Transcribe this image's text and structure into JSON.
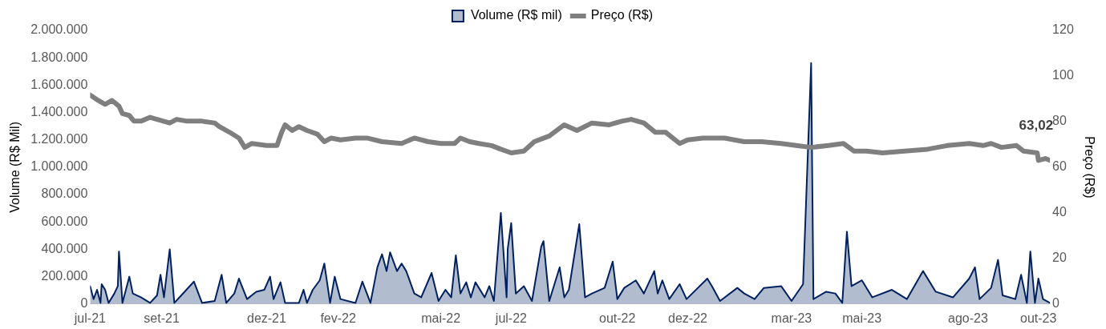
{
  "chart_data": {
    "type": "line",
    "ylabel": "Volume (R$ Mil)",
    "y2label": "Preço (R$)",
    "legend": "top",
    "grid": false,
    "marker": "none",
    "xlim": [
      "2021-07-01",
      "2023-10-11"
    ],
    "xticks": [
      {
        "value": "2021-07-01",
        "label": "jul-21"
      },
      {
        "value": "2021-09-01",
        "label": "set-21"
      },
      {
        "value": "2021-12-01",
        "label": "dez-21"
      },
      {
        "value": "2022-02-01",
        "label": "fev-22"
      },
      {
        "value": "2022-05-01",
        "label": "mai-22"
      },
      {
        "value": "2022-07-01",
        "label": "jul-22"
      },
      {
        "value": "2022-10-01",
        "label": "out-22"
      },
      {
        "value": "2022-12-01",
        "label": "dez-22"
      },
      {
        "value": "2023-03-01",
        "label": "mar-23"
      },
      {
        "value": "2023-05-01",
        "label": "mai-23"
      },
      {
        "value": "2023-08-01",
        "label": "ago-23"
      },
      {
        "value": "2023-10-01",
        "label": "out-23"
      }
    ],
    "ylim": [
      0,
      2000000
    ],
    "yticks": [
      {
        "value": 0,
        "label": "0"
      },
      {
        "value": 200000,
        "label": "200.000"
      },
      {
        "value": 400000,
        "label": "400.000"
      },
      {
        "value": 600000,
        "label": "600.000"
      },
      {
        "value": 800000,
        "label": "800.000"
      },
      {
        "value": 1000000,
        "label": "1.000.000"
      },
      {
        "value": 1200000,
        "label": "1.200.000"
      },
      {
        "value": 1400000,
        "label": "1.400.000"
      },
      {
        "value": 1600000,
        "label": "1.600.000"
      },
      {
        "value": 1800000,
        "label": "1.800.000"
      },
      {
        "value": 2000000,
        "label": "2.000.000"
      }
    ],
    "y2lim": [
      0,
      120
    ],
    "y2ticks": [
      0,
      20,
      40,
      60,
      80,
      100,
      120
    ],
    "series": [
      {
        "name": "Volume (R$ mil)",
        "type": "area",
        "color": "#002060",
        "x": [
          "2021-07-01",
          "2021-07-04",
          "2021-07-07",
          "2021-07-10",
          "2021-07-11",
          "2021-07-14",
          "2021-07-17",
          "2021-07-22",
          "2021-07-25",
          "2021-07-26",
          "2021-07-29",
          "2021-08-01",
          "2021-08-04",
          "2021-08-07",
          "2021-08-14",
          "2021-08-22",
          "2021-08-28",
          "2021-08-31",
          "2021-09-03",
          "2021-09-08",
          "2021-09-12",
          "2021-09-18",
          "2021-09-29",
          "2021-10-06",
          "2021-10-17",
          "2021-10-23",
          "2021-10-27",
          "2021-11-03",
          "2021-11-07",
          "2021-11-14",
          "2021-11-22",
          "2021-11-29",
          "2021-12-04",
          "2021-12-07",
          "2021-12-13",
          "2021-12-17",
          "2021-12-29",
          "2022-01-02",
          "2022-01-05",
          "2022-01-10",
          "2022-01-16",
          "2022-01-20",
          "2022-01-25",
          "2022-01-29",
          "2022-02-03",
          "2022-02-16",
          "2022-02-22",
          "2022-03-01",
          "2022-03-07",
          "2022-03-11",
          "2022-03-15",
          "2022-03-18",
          "2022-03-24",
          "2022-03-28",
          "2022-04-01",
          "2022-04-08",
          "2022-04-14",
          "2022-04-23",
          "2022-04-29",
          "2022-05-05",
          "2022-05-10",
          "2022-05-14",
          "2022-05-18",
          "2022-05-23",
          "2022-05-27",
          "2022-05-31",
          "2022-06-08",
          "2022-06-12",
          "2022-06-16",
          "2022-06-22",
          "2022-06-27",
          "2022-06-28",
          "2022-07-01",
          "2022-07-05",
          "2022-07-12",
          "2022-07-19",
          "2022-07-27",
          "2022-07-29",
          "2022-08-03",
          "2022-08-12",
          "2022-08-16",
          "2022-08-20",
          "2022-08-29",
          "2022-09-03",
          "2022-09-09",
          "2022-09-20",
          "2022-09-27",
          "2022-10-01",
          "2022-10-07",
          "2022-10-17",
          "2022-10-24",
          "2022-11-02",
          "2022-11-05",
          "2022-11-09",
          "2022-11-15",
          "2022-11-24",
          "2022-11-30",
          "2022-12-18",
          "2022-12-22",
          "2022-12-29",
          "2023-01-13",
          "2023-01-19",
          "2023-01-28",
          "2023-02-05",
          "2023-02-20",
          "2023-03-01",
          "2023-03-11",
          "2023-03-18",
          "2023-03-20",
          "2023-03-31",
          "2023-04-08",
          "2023-04-14",
          "2023-04-18",
          "2023-04-22",
          "2023-05-01",
          "2023-05-10",
          "2023-05-27",
          "2023-06-09",
          "2023-06-23",
          "2023-07-04",
          "2023-07-19",
          "2023-08-02",
          "2023-08-07",
          "2023-08-11",
          "2023-08-21",
          "2023-08-27",
          "2023-08-31",
          "2023-09-11",
          "2023-09-16",
          "2023-09-21",
          "2023-09-24",
          "2023-09-28",
          "2023-10-01",
          "2023-10-05",
          "2023-10-11"
        ],
        "values": [
          131000,
          36000,
          104000,
          8000,
          145000,
          104000,
          8000,
          77000,
          131000,
          384000,
          8000,
          104000,
          200000,
          77000,
          49000,
          8000,
          63000,
          214000,
          49000,
          400000,
          8000,
          63000,
          164000,
          8000,
          22000,
          214000,
          8000,
          77000,
          186000,
          36000,
          90000,
          104000,
          200000,
          36000,
          159000,
          8000,
          8000,
          104000,
          8000,
          104000,
          173000,
          296000,
          8000,
          200000,
          36000,
          8000,
          164000,
          8000,
          269000,
          364000,
          241000,
          378000,
          241000,
          296000,
          241000,
          77000,
          49000,
          227000,
          22000,
          104000,
          49000,
          356000,
          77000,
          159000,
          49000,
          159000,
          49000,
          131000,
          22000,
          666000,
          49000,
          405000,
          592000,
          77000,
          131000,
          22000,
          419000,
          460000,
          22000,
          268000,
          49000,
          104000,
          584000,
          49000,
          77000,
          118000,
          310000,
          36000,
          118000,
          173000,
          77000,
          241000,
          77000,
          173000,
          36000,
          145000,
          36000,
          186000,
          131000,
          22000,
          118000,
          77000,
          36000,
          118000,
          131000,
          22000,
          145000,
          1762000,
          36000,
          90000,
          77000,
          8000,
          529000,
          131000,
          173000,
          49000,
          104000,
          36000,
          241000,
          90000,
          49000,
          186000,
          268000,
          36000,
          118000,
          323000,
          63000,
          36000,
          214000,
          8000,
          384000,
          8000,
          186000,
          36000,
          8000
        ]
      },
      {
        "name": "Preço (R$)",
        "type": "line",
        "axis": "y2",
        "color": "#7f7f7f",
        "x": [
          "2021-07-01",
          "2021-07-08",
          "2021-07-14",
          "2021-07-20",
          "2021-07-26",
          "2021-07-29",
          "2021-08-04",
          "2021-08-08",
          "2021-08-14",
          "2021-08-22",
          "2021-08-28",
          "2021-09-08",
          "2021-09-14",
          "2021-09-23",
          "2021-10-06",
          "2021-10-17",
          "2021-10-21",
          "2021-10-30",
          "2021-11-07",
          "2021-11-12",
          "2021-11-18",
          "2021-12-01",
          "2021-12-10",
          "2021-12-14",
          "2021-12-17",
          "2021-12-23",
          "2021-12-29",
          "2022-01-05",
          "2022-01-14",
          "2022-01-20",
          "2022-01-26",
          "2022-02-03",
          "2022-02-16",
          "2022-02-26",
          "2022-03-11",
          "2022-03-28",
          "2022-04-08",
          "2022-04-20",
          "2022-05-01",
          "2022-05-13",
          "2022-05-18",
          "2022-05-26",
          "2022-06-03",
          "2022-06-14",
          "2022-06-22",
          "2022-07-01",
          "2022-07-12",
          "2022-07-21",
          "2022-08-03",
          "2022-08-16",
          "2022-08-27",
          "2022-09-09",
          "2022-09-24",
          "2022-10-05",
          "2022-10-13",
          "2022-10-24",
          "2022-11-03",
          "2022-11-12",
          "2022-11-24",
          "2022-12-01",
          "2022-12-14",
          "2023-01-02",
          "2023-01-19",
          "2023-02-03",
          "2023-02-20",
          "2023-03-05",
          "2023-03-18",
          "2023-04-02",
          "2023-04-15",
          "2023-04-24",
          "2023-05-05",
          "2023-05-19",
          "2023-06-07",
          "2023-06-27",
          "2023-07-14",
          "2023-08-02",
          "2023-08-14",
          "2023-08-21",
          "2023-08-30",
          "2023-09-12",
          "2023-09-18",
          "2023-09-30",
          "2023-10-01",
          "2023-10-07",
          "2023-10-11"
        ],
        "values": [
          91.7,
          89.3,
          87.6,
          89.3,
          86.8,
          83.5,
          82.7,
          80.2,
          80.2,
          81.9,
          81.0,
          79.4,
          81.0,
          80.2,
          80.2,
          79.4,
          77.8,
          75.3,
          72.8,
          68.7,
          70.4,
          69.5,
          69.5,
          75.3,
          78.6,
          76.1,
          77.8,
          76.1,
          74.5,
          71.2,
          72.8,
          72.0,
          72.8,
          72.8,
          71.2,
          70.4,
          72.8,
          71.2,
          70.4,
          70.4,
          72.8,
          71.2,
          70.4,
          69.5,
          67.9,
          66.3,
          67.1,
          71.2,
          73.7,
          78.6,
          76.1,
          79.4,
          78.6,
          80.2,
          81.0,
          79.4,
          75.3,
          75.3,
          70.4,
          72.0,
          72.8,
          72.8,
          71.2,
          71.2,
          70.4,
          69.5,
          68.7,
          69.5,
          70.4,
          67.1,
          67.1,
          66.3,
          67.1,
          67.9,
          69.5,
          70.4,
          69.5,
          70.4,
          68.7,
          69.5,
          67.1,
          66.3,
          63.0,
          63.8,
          63.02
        ],
        "value_labels": [
          null,
          null,
          null,
          null,
          null,
          null,
          null,
          null,
          null,
          null,
          null,
          null,
          null,
          null,
          null,
          null,
          null,
          null,
          null,
          null,
          null,
          null,
          null,
          null,
          null,
          null,
          null,
          null,
          null,
          null,
          null,
          null,
          null,
          null,
          null,
          null,
          null,
          null,
          null,
          null,
          null,
          null,
          null,
          null,
          null,
          null,
          null,
          null,
          null,
          null,
          null,
          null,
          null,
          null,
          null,
          null,
          null,
          null,
          null,
          null,
          null,
          null,
          null,
          null,
          null,
          null,
          null,
          null,
          null,
          null,
          null,
          null,
          null,
          null,
          null,
          null,
          null,
          null,
          null,
          null,
          null,
          null,
          null,
          null,
          "63,02"
        ]
      }
    ]
  }
}
